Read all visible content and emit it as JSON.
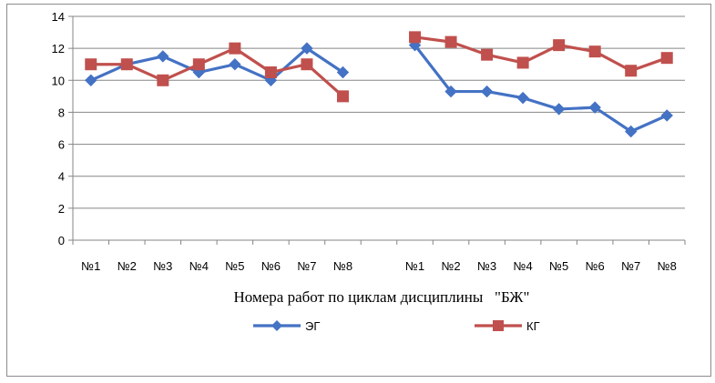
{
  "chart_data": {
    "type": "line",
    "xlabel": "Номера работ по циклам дисциплины   \"БЖ\"",
    "ylabel": "",
    "ylim": [
      0,
      14
    ],
    "yticks": [
      0,
      2,
      4,
      6,
      8,
      10,
      12,
      14
    ],
    "grid": "horizontal",
    "legend_position": "bottom",
    "categories": [
      "№1",
      "№2",
      "№3",
      "№4",
      "№5",
      "№6",
      "№7",
      "№8",
      "",
      "№1",
      "№2",
      "№3",
      "№4",
      "№5",
      "№6",
      "№7",
      "№8"
    ],
    "series": [
      {
        "name": "ЭГ",
        "color": "#4472c4",
        "marker": "diamond",
        "segments": [
          [
            10,
            11,
            11.5,
            10.5,
            11,
            10,
            12,
            10.5
          ],
          [
            12.2,
            9.3,
            9.3,
            8.9,
            8.2,
            8.3,
            6.8,
            7.8
          ]
        ]
      },
      {
        "name": "КГ",
        "color": "#c0504d",
        "marker": "square",
        "segments": [
          [
            11,
            11,
            10,
            11,
            12,
            10.5,
            11,
            9
          ],
          [
            12.7,
            12.4,
            11.6,
            11.1,
            12.2,
            11.8,
            10.6,
            11.4
          ]
        ]
      }
    ]
  }
}
